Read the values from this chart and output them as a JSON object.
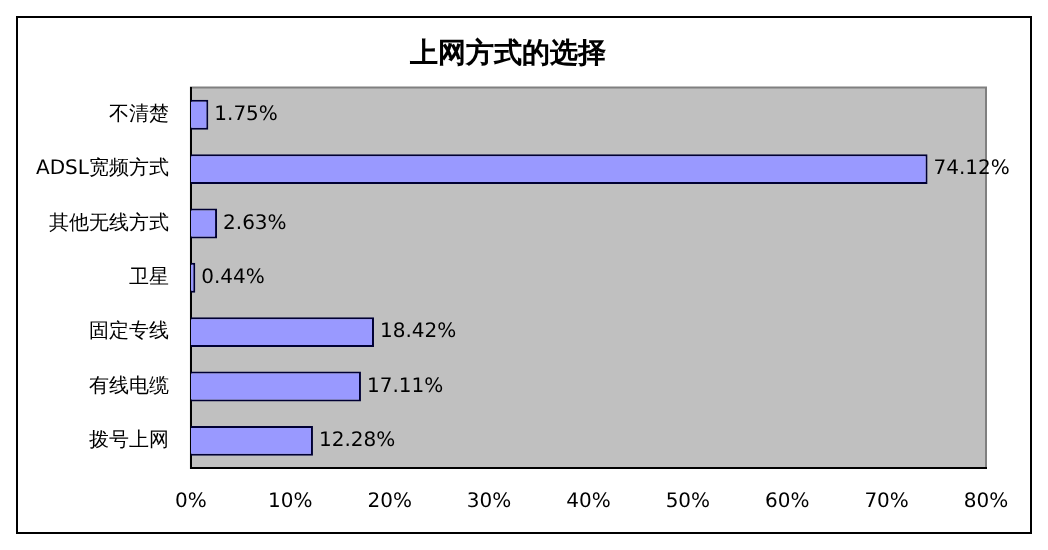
{
  "chart_data": {
    "type": "bar",
    "orientation": "horizontal",
    "title": "上网方式的选择",
    "categories": [
      "不清楚",
      "ADSL宽频方式",
      "其他无线方式",
      "卫星",
      "固定专线",
      "有线电缆",
      "拨号上网"
    ],
    "values": [
      1.75,
      74.12,
      2.63,
      0.44,
      18.42,
      17.11,
      12.28
    ],
    "value_labels": [
      "1.75%",
      "74.12%",
      "2.63%",
      "0.44%",
      "18.42%",
      "17.11%",
      "12.28%"
    ],
    "color": "#9999ff",
    "xlim": [
      0,
      80
    ],
    "xticks": [
      {
        "value": 0,
        "label": "0%"
      },
      {
        "value": 10,
        "label": "10%"
      },
      {
        "value": 20,
        "label": "20%"
      },
      {
        "value": 30,
        "label": "30%"
      },
      {
        "value": 40,
        "label": "40%"
      },
      {
        "value": 50,
        "label": "50%"
      },
      {
        "value": 60,
        "label": "60%"
      },
      {
        "value": 70,
        "label": "70%"
      },
      {
        "value": 80,
        "label": "80%"
      }
    ],
    "grid": false,
    "legend": false
  }
}
